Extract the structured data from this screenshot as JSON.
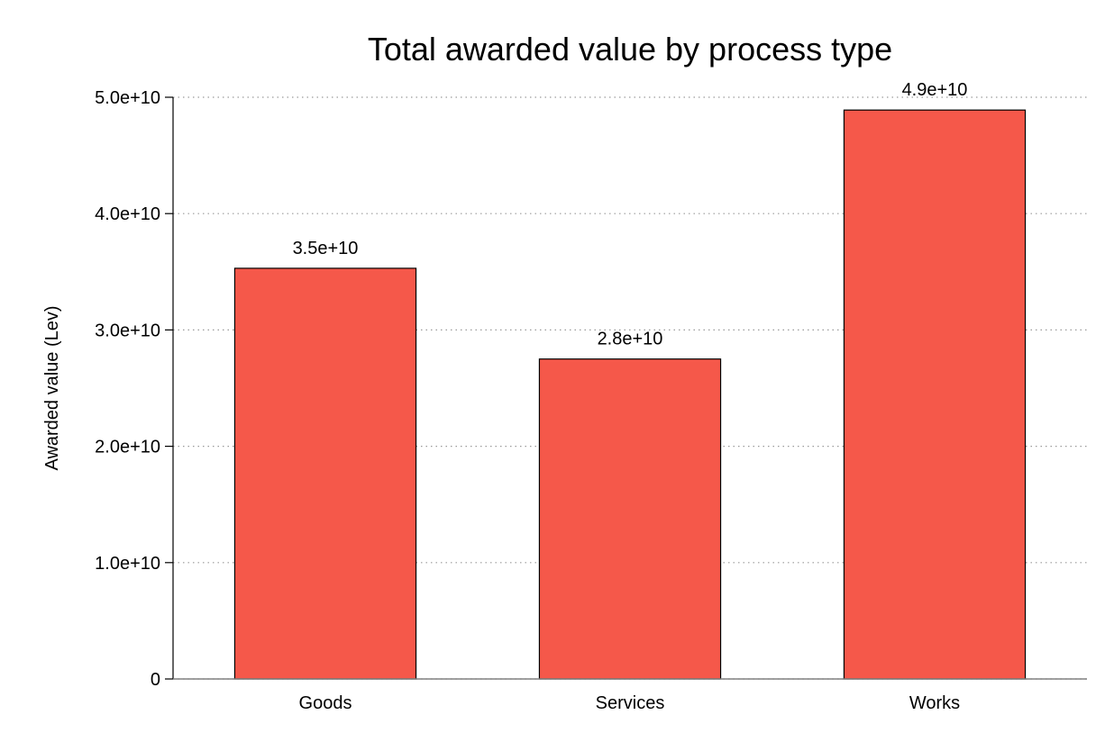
{
  "chart_data": {
    "type": "bar",
    "title": "Total awarded value by process type",
    "xlabel": "",
    "ylabel": "Awarded value (Lev)",
    "categories": [
      "Goods",
      "Services",
      "Works"
    ],
    "values": [
      35300000000,
      27500000000,
      48900000000
    ],
    "value_labels": [
      "3.5e+10",
      "2.8e+10",
      "4.9e+10"
    ],
    "ylim": [
      0,
      50000000000
    ],
    "y_ticks": [
      0,
      10000000000,
      20000000000,
      30000000000,
      40000000000,
      50000000000
    ],
    "y_tick_labels": [
      "0",
      "1.0e+10",
      "2.0e+10",
      "3.0e+10",
      "4.0e+10",
      "5.0e+10"
    ],
    "grid": "horizontal dotted",
    "bar_color": "#F5584A",
    "bar_edge_color": "#000000",
    "legend": "none"
  }
}
